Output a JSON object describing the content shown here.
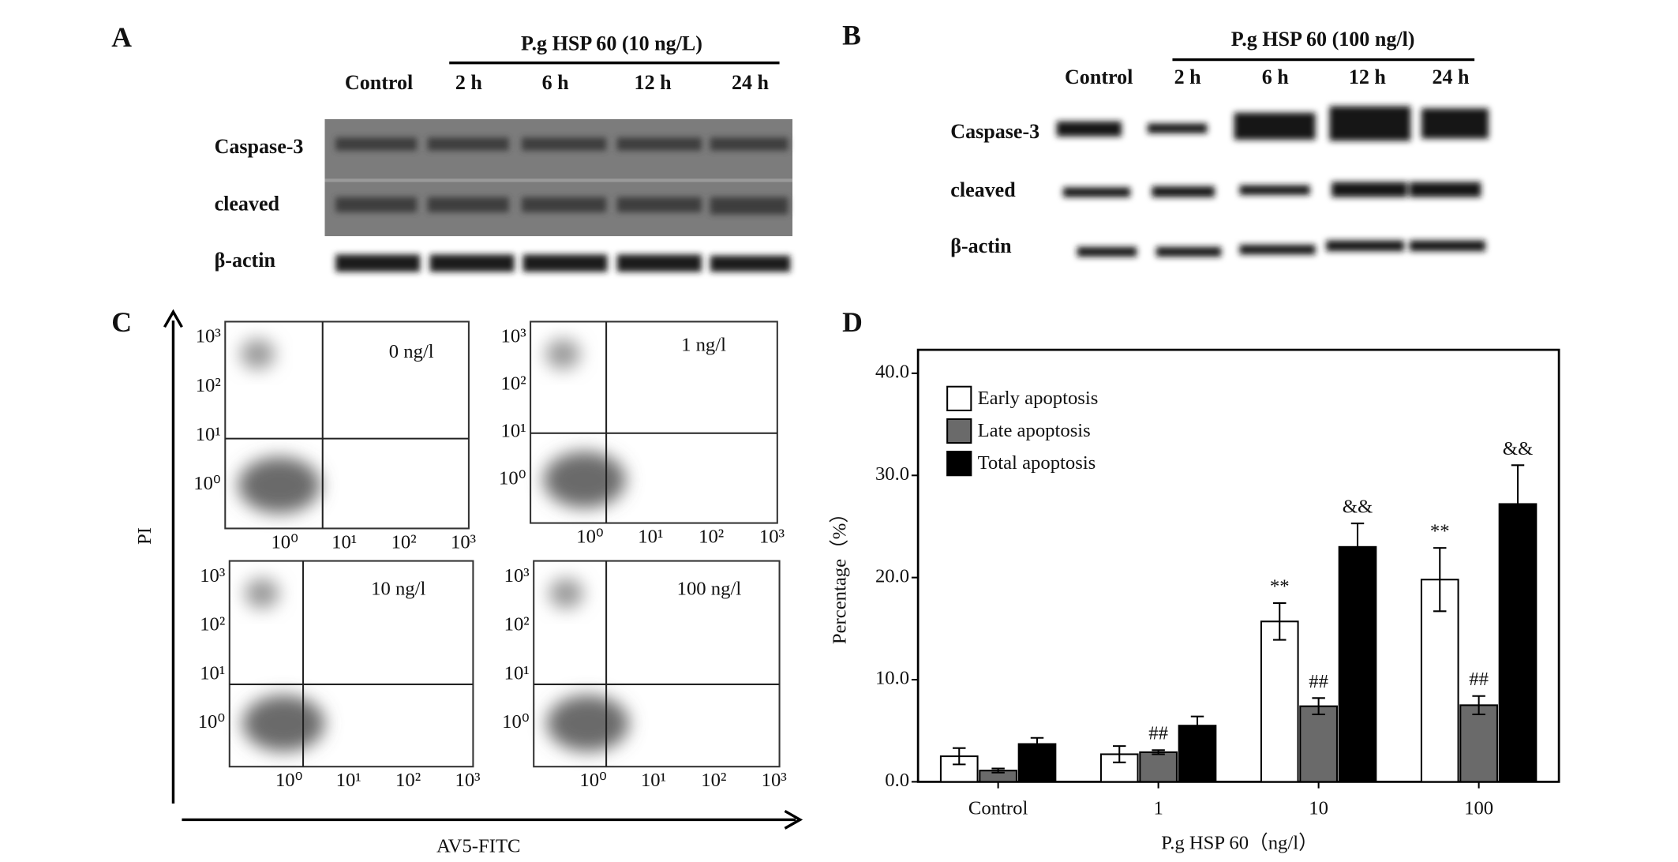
{
  "panel_a": {
    "label": "A",
    "treatment": "P.g HSP 60 (10 ng/L)",
    "lanes": [
      "Control",
      "2 h",
      "6 h",
      "12 h",
      "24 h"
    ],
    "rows": [
      "Caspase-3",
      "cleaved",
      "β-actin"
    ]
  },
  "panel_b": {
    "label": "B",
    "treatment": "P.g HSP 60 (100 ng/l)",
    "lanes": [
      "Control",
      "2 h",
      "6 h",
      "12 h",
      "24 h"
    ],
    "rows": [
      "Caspase-3",
      "cleaved",
      "β-actin"
    ]
  },
  "panel_c": {
    "label": "C",
    "y_label": "PI",
    "x_label": "AV5-FITC",
    "tick_labels": [
      "10⁰",
      "10¹",
      "10²",
      "10³"
    ],
    "plots": [
      {
        "label": "0 ng/l"
      },
      {
        "label": "1 ng/l"
      },
      {
        "label": "10 ng/l"
      },
      {
        "label": "100 ng/l"
      }
    ]
  },
  "panel_d": {
    "label": "D"
  },
  "chart_data": {
    "type": "bar",
    "x_label": "P.g HSP 60（ng/l）",
    "y_label": "Percentage（%）",
    "categories": [
      "Control",
      "1",
      "10",
      "100"
    ],
    "series": [
      {
        "name": "Early apoptosis",
        "color": "#ffffff",
        "values": [
          2.5,
          2.7,
          15.7,
          19.8
        ],
        "errors": [
          0.8,
          0.8,
          1.8,
          3.1
        ],
        "marks": [
          null,
          null,
          "**",
          "**"
        ]
      },
      {
        "name": "Late apoptosis",
        "color": "#6a6a6a",
        "values": [
          1.1,
          2.9,
          7.4,
          7.5
        ],
        "errors": [
          0.2,
          0.2,
          0.8,
          0.9
        ],
        "marks": [
          null,
          "##",
          "##",
          "##"
        ]
      },
      {
        "name": "Total apoptosis",
        "color": "#000000",
        "values": [
          3.7,
          5.5,
          23.0,
          27.2
        ],
        "errors": [
          0.6,
          0.9,
          2.3,
          3.8
        ],
        "marks": [
          null,
          null,
          "&&",
          "&&"
        ]
      }
    ],
    "ylim": [
      0,
      42.3
    ],
    "yticks": [
      {
        "value": 0,
        "label": "0.0"
      },
      {
        "value": 10,
        "label": "10.0"
      },
      {
        "value": 20,
        "label": "20.0"
      },
      {
        "value": 30,
        "label": "30.0"
      },
      {
        "value": 40,
        "label": "40.0"
      }
    ],
    "legend": "upper-left"
  }
}
